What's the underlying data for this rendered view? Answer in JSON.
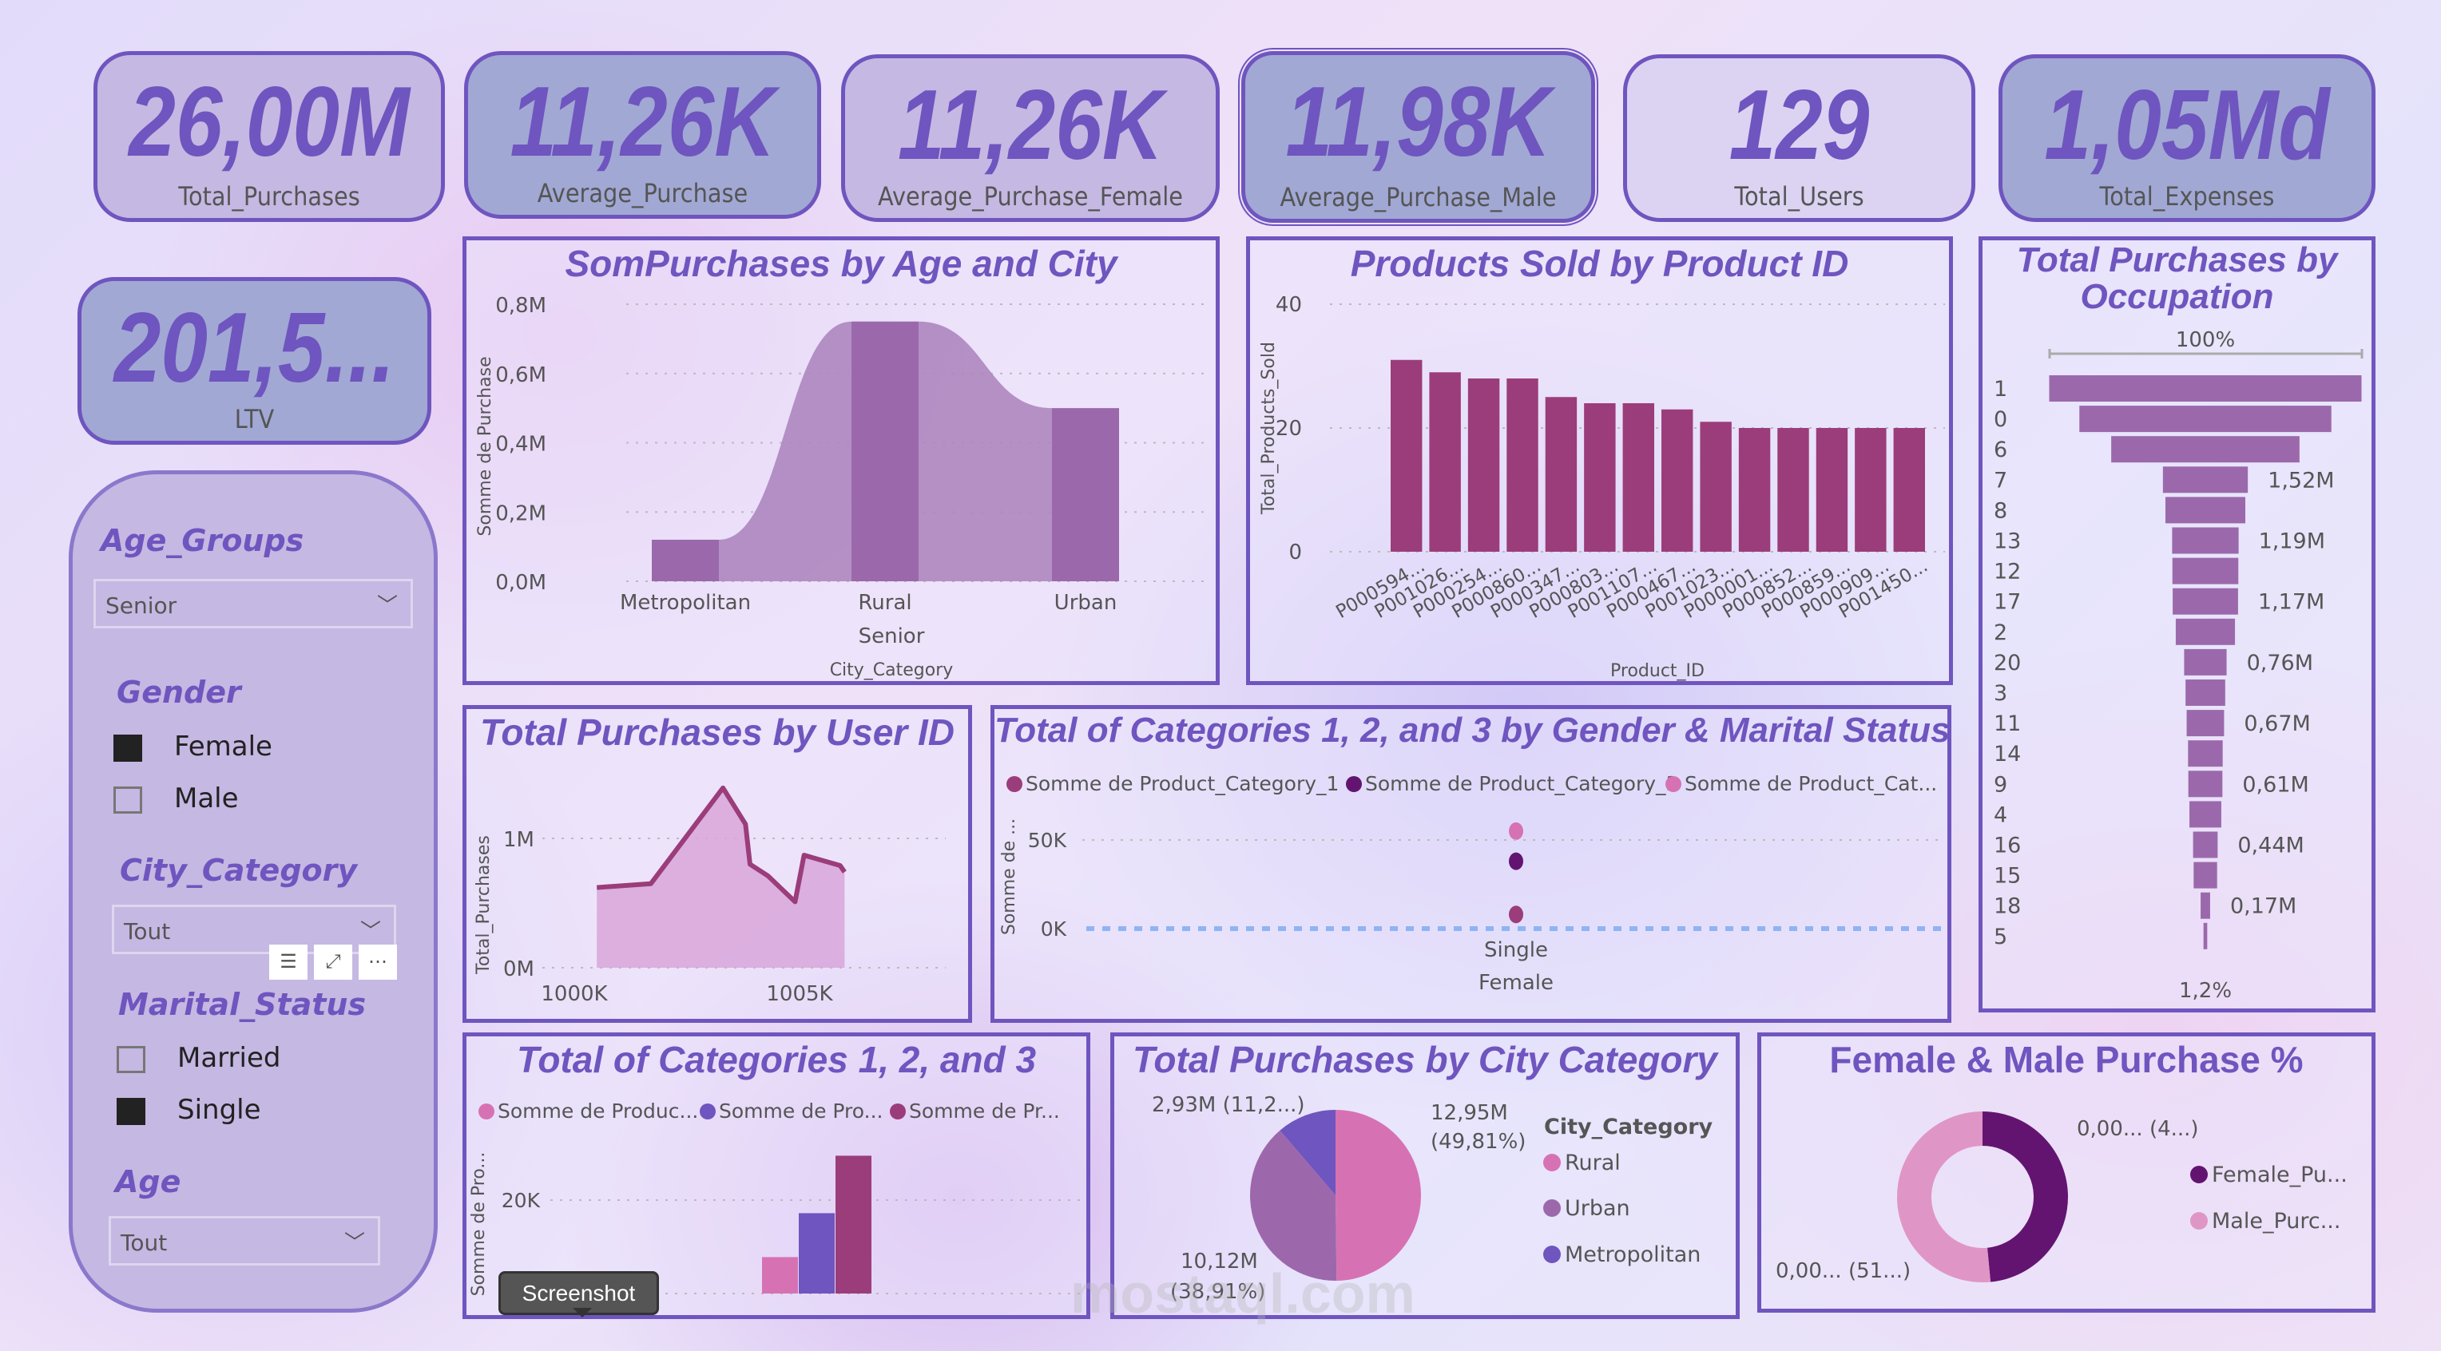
{
  "kpis": [
    {
      "value": "26,00M",
      "label": "Total_Purchases"
    },
    {
      "value": "11,26K",
      "label": "Average_Purchase"
    },
    {
      "value": "11,26K",
      "label": "Average_Purchase_Female"
    },
    {
      "value": "11,98K",
      "label": "Average_Purchase_Male"
    },
    {
      "value": "129",
      "label": "Total_Users"
    },
    {
      "value": "1,05Md",
      "label": "Total_Expenses"
    },
    {
      "value": "201,5...",
      "label": "LTV"
    }
  ],
  "slicers": {
    "age_groups": {
      "title": "Age_Groups",
      "selected": "Senior"
    },
    "gender": {
      "title": "Gender",
      "options": [
        {
          "label": "Female",
          "checked": true
        },
        {
          "label": "Male",
          "checked": false
        }
      ]
    },
    "city_category": {
      "title": "City_Category",
      "selected": "Tout"
    },
    "marital_status": {
      "title": "Marital_Status",
      "options": [
        {
          "label": "Married",
          "checked": false
        },
        {
          "label": "Single",
          "checked": true
        }
      ]
    },
    "age": {
      "title": "Age",
      "selected": "Tout"
    },
    "toolbar_icons": [
      "filter-icon",
      "focus-mode-icon",
      "more-options-icon"
    ]
  },
  "tooltip": "Screenshot",
  "watermark": "mostaql.com",
  "colors": {
    "accent": "#6f55bf",
    "bar": "#9b3d7a",
    "funnel": "#9b69ab"
  },
  "chart_data": [
    {
      "id": "age_city",
      "type": "ribbon",
      "title": "SomPurchases by Age and City",
      "categories": [
        "Metropolitan",
        "Rural",
        "Urban"
      ],
      "group": "Senior",
      "values": [
        0.12,
        0.75,
        0.5
      ],
      "unit": "M",
      "yticks": [
        "0,0M",
        "0,2M",
        "0,4M",
        "0,6M",
        "0,8M"
      ],
      "ylim": [
        0,
        0.8
      ],
      "ylabel": "Somme de Purchase",
      "xlabel": "City_Category",
      "color": "#9b69ab"
    },
    {
      "id": "products",
      "type": "bar",
      "title": "Products Sold by Product ID",
      "categories": [
        "P000594...",
        "P001026...",
        "P000254...",
        "P000860...",
        "P000347...",
        "P000803...",
        "P001107...",
        "P000467...",
        "P001023...",
        "P000001...",
        "P000852...",
        "P000859...",
        "P000909...",
        "P001450..."
      ],
      "values": [
        31,
        29,
        28,
        28,
        25,
        24,
        24,
        23,
        21,
        20,
        20,
        20,
        20,
        20
      ],
      "yticks": [
        "0",
        "20",
        "40"
      ],
      "ylim": [
        0,
        40
      ],
      "ylabel": "Total_Products_Sold",
      "xlabel": "Product_ID",
      "color": "#9b3d7a"
    },
    {
      "id": "occupation",
      "type": "funnel",
      "title": "Total Purchases by Occupation",
      "categories": [
        "1",
        "0",
        "6",
        "7",
        "8",
        "13",
        "12",
        "17",
        "2",
        "20",
        "3",
        "11",
        "14",
        "9",
        "4",
        "16",
        "15",
        "18",
        "5"
      ],
      "values": [
        5.59,
        4.51,
        3.37,
        1.52,
        1.43,
        1.19,
        1.18,
        1.17,
        1.06,
        0.76,
        0.71,
        0.67,
        0.62,
        0.61,
        0.57,
        0.44,
        0.42,
        0.17,
        0.067
      ],
      "labels": [
        "",
        "",
        "",
        "1,52M",
        "",
        "1,19M",
        "",
        "1,17M",
        "",
        "0,76M",
        "",
        "0,67M",
        "",
        "0,61M",
        "",
        "0,44M",
        "",
        "0,17M",
        ""
      ],
      "top_label": "100%",
      "bottom_label": "1,2%",
      "unit": "M"
    },
    {
      "id": "user_id",
      "type": "area",
      "title": "Total Purchases by User ID",
      "x": [
        1000.5,
        1001.7,
        1003.3,
        1003.8,
        1003.9,
        1004.3,
        1004.9,
        1005.1,
        1005.9,
        1006.0
      ],
      "y": [
        0.62,
        0.65,
        1.39,
        1.11,
        0.8,
        0.71,
        0.51,
        0.87,
        0.79,
        0.74
      ],
      "xticks": [
        "1000K",
        "1005K"
      ],
      "yticks": [
        "0M",
        "1M"
      ],
      "ylabel": "Total_Purchases"
    },
    {
      "id": "gender_marital",
      "type": "scatter",
      "title": "Total of Categories 1, 2, and 3 by Gender & Marital Status",
      "categories": [
        "Single"
      ],
      "group": "Female",
      "series": [
        {
          "name": "Somme de Product_Category_1",
          "values": [
            8
          ],
          "color": "#9b3d7a"
        },
        {
          "name": "Somme de Product_Category_3",
          "values": [
            38
          ],
          "color": "#631471"
        },
        {
          "name": "Somme de Product_Cat...",
          "values": [
            55
          ],
          "color": "#d672b4"
        }
      ],
      "yticks": [
        "0K",
        "50K"
      ],
      "ylabel": "Somme de ...",
      "unit": "K"
    },
    {
      "id": "cat123",
      "type": "bar",
      "title": "Total of Categories 1, 2, and 3",
      "series": [
        {
          "name": "Somme de Produc...",
          "values": [
            7.8
          ],
          "color": "#d672b4"
        },
        {
          "name": "Somme de Pro...",
          "values": [
            17.2
          ],
          "color": "#6f55bf"
        },
        {
          "name": "Somme de Pr...",
          "values": [
            29.5
          ],
          "color": "#9b3d7a"
        }
      ],
      "yticks": [
        "20K"
      ],
      "ylabel": "Somme de Pro...",
      "unit": "K"
    },
    {
      "id": "city",
      "type": "pie",
      "title": "Total Purchases by City Category",
      "legend_title": "City_Category",
      "slices": [
        {
          "name": "Rural",
          "value": 12.95,
          "label": "12,95M",
          "pct": "(49,81%)",
          "color": "#d672b4"
        },
        {
          "name": "Urban",
          "value": 10.12,
          "label": "10,12M",
          "pct": "(38,91%)",
          "color": "#9d68ab"
        },
        {
          "name": "Metropolitan",
          "value": 2.93,
          "label": "2,93M (11,2...)",
          "pct": "",
          "color": "#6f55bf"
        }
      ]
    },
    {
      "id": "gender_pct",
      "type": "donut",
      "title": "Female & Male Purchase %",
      "slices": [
        {
          "name": "Female_Pu...",
          "value": 48.5,
          "label": "0,00... (4...)",
          "color": "#631471"
        },
        {
          "name": "Male_Purc...",
          "value": 51.5,
          "label": "0,00... (51...)",
          "color": "#df96c6"
        }
      ]
    }
  ]
}
